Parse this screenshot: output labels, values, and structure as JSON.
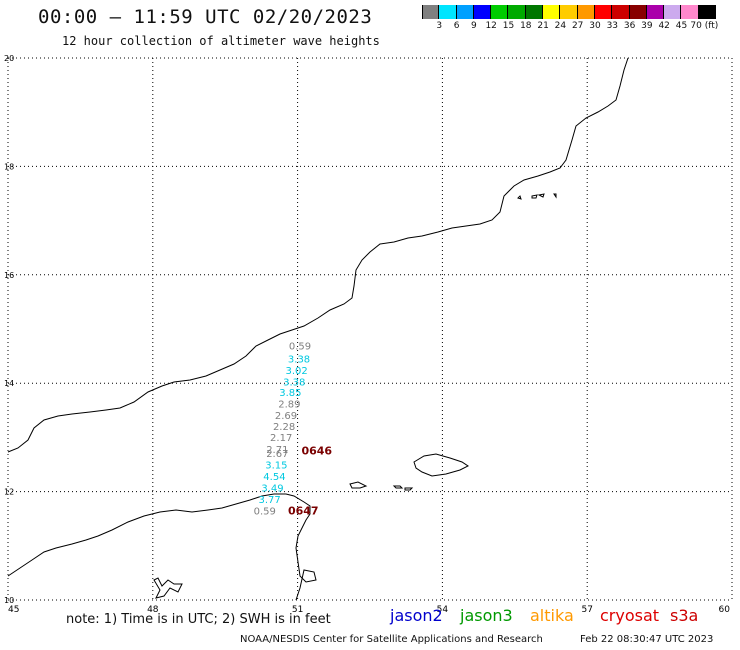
{
  "header": {
    "title": "00:00 – 11:59 UTC 02/20/2023",
    "subtitle": "12 hour collection of altimeter wave heights"
  },
  "legend": {
    "colors": [
      "#808080",
      "#00e5ff",
      "#00a0ff",
      "#0000ff",
      "#00cc00",
      "#00aa00",
      "#007700",
      "#ffff00",
      "#ffcc00",
      "#ff9900",
      "#ff0000",
      "#cc0000",
      "#880000",
      "#aa00aa",
      "#ccaaee",
      "#ff88cc",
      "#000000"
    ],
    "labels": [
      "3",
      "6",
      "9",
      "12",
      "15",
      "18",
      "21",
      "24",
      "27",
      "30",
      "33",
      "36",
      "39",
      "42",
      "45",
      "70 (ft)"
    ]
  },
  "axes": {
    "lon_labels": [
      "45",
      "48",
      "51",
      "54",
      "57",
      "60"
    ],
    "lat_labels": [
      "20",
      "18",
      "16",
      "14",
      "12",
      "10"
    ],
    "lon_range": [
      45,
      60
    ],
    "lat_range": [
      10,
      20
    ],
    "grid": "dotted"
  },
  "observations": [
    {
      "value": "0.59",
      "color": "#808080",
      "lat": 14.62,
      "lon": 51.05
    },
    {
      "value": "3.38",
      "color": "#00c8e0",
      "lat": 14.38,
      "lon": 51.03
    },
    {
      "value": "3.02",
      "color": "#00c8e0",
      "lat": 14.17,
      "lon": 50.98
    },
    {
      "value": "3.38",
      "color": "#00c8e0",
      "lat": 13.96,
      "lon": 50.93
    },
    {
      "value": "3.85",
      "color": "#00c8e0",
      "lat": 13.76,
      "lon": 50.85
    },
    {
      "value": "2.89",
      "color": "#808080",
      "lat": 13.55,
      "lon": 50.83
    },
    {
      "value": "2.69",
      "color": "#808080",
      "lat": 13.34,
      "lon": 50.76
    },
    {
      "value": "2.28",
      "color": "#808080",
      "lat": 13.14,
      "lon": 50.72
    },
    {
      "value": "2.17",
      "color": "#808080",
      "lat": 12.93,
      "lon": 50.66
    },
    {
      "value": "2.71",
      "color": "#808080",
      "lat": 12.71,
      "lon": 50.58
    },
    {
      "value": "2.67",
      "color": "#808080",
      "lat": 12.64,
      "lon": 50.58
    },
    {
      "value": "3.15",
      "color": "#00c8e0",
      "lat": 12.43,
      "lon": 50.56
    },
    {
      "value": "4.54",
      "color": "#00c8e0",
      "lat": 12.21,
      "lon": 50.52
    },
    {
      "value": "3.49",
      "color": "#00c8e0",
      "lat": 12.0,
      "lon": 50.48
    },
    {
      "value": "3.77",
      "color": "#00c8e0",
      "lat": 11.79,
      "lon": 50.42
    },
    {
      "value": "0.59",
      "color": "#808080",
      "lat": 11.58,
      "lon": 50.32
    }
  ],
  "time_labels": [
    {
      "text": "0646",
      "color": "#7a0000",
      "lat": 12.68,
      "lon": 51.08
    },
    {
      "text": "0647",
      "color": "#7a0000",
      "lat": 11.58,
      "lon": 50.8
    }
  ],
  "note": "note: 1) Time is in UTC; 2) SWH is in feet",
  "satellites": [
    {
      "name": "jason2",
      "color": "#0000cc"
    },
    {
      "name": "jason3",
      "color": "#009900"
    },
    {
      "name": "altika",
      "color": "#ff9900"
    },
    {
      "name": "cryosat",
      "color": "#dd0000"
    },
    {
      "name": "s3a",
      "color": "#cc0000"
    }
  ],
  "footer": {
    "agency": "NOAA/NESDIS Center for Satellite Applications and Research",
    "generated": "Feb 22 08:30:47 UTC 2023"
  }
}
